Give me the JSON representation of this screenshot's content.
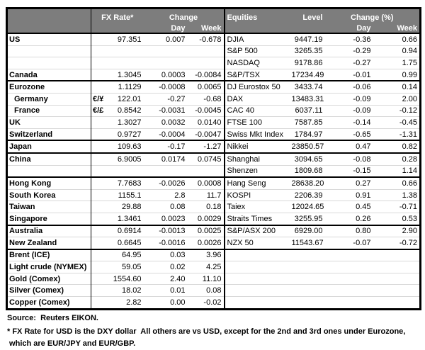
{
  "header": {
    "fx_rate": "FX Rate*",
    "change": "Change",
    "day": "Day",
    "week": "Week",
    "equities": "Equities",
    "level": "Level",
    "change_pct": "Change (%)"
  },
  "colors": {
    "header_bg": "#7d7d7d",
    "header_text": "#ffffff",
    "border": "#000000",
    "row_gridline": "#d9d9d9"
  },
  "sections": [
    {
      "rows": [
        {
          "label": "US",
          "fx": "97.351",
          "fx_day": "0.007",
          "fx_week": "-0.678",
          "equity": "DJIA",
          "level": "9447.19",
          "eq_day": "-0.36",
          "eq_week": "0.66"
        },
        {
          "label": "",
          "equity": "S&P 500",
          "level": "3265.35",
          "eq_day": "-0.29",
          "eq_week": "0.94"
        },
        {
          "label": "",
          "equity": "NASDAQ",
          "level": "9178.86",
          "eq_day": "-0.27",
          "eq_week": "1.75"
        },
        {
          "label": "Canada",
          "fx": "1.3045",
          "fx_day": "0.0003",
          "fx_week": "-0.0084",
          "equity": "S&P/TSX",
          "level": "17234.49",
          "eq_day": "-0.01",
          "eq_week": "0.99"
        }
      ]
    },
    {
      "rows": [
        {
          "label": "Eurozone",
          "fx": "1.1129",
          "fx_day": "-0.0008",
          "fx_week": "0.0065",
          "equity": "DJ Eurostox 50",
          "level": "3433.74",
          "eq_day": "-0.06",
          "eq_week": "0.14"
        },
        {
          "label": "Germany",
          "indent": true,
          "pair": "€/¥",
          "fx": "122.01",
          "fx_day": "-0.27",
          "fx_week": "-0.68",
          "equity": "DAX",
          "level": "13483.31",
          "eq_day": "-0.09",
          "eq_week": "2.00"
        },
        {
          "label": "France",
          "indent": true,
          "pair": "€/£",
          "fx": "0.8542",
          "fx_day": "-0.0031",
          "fx_week": "-0.0045",
          "equity": "CAC 40",
          "level": "6037.11",
          "eq_day": "-0.09",
          "eq_week": "-0.12"
        },
        {
          "label": "UK",
          "fx": "1.3027",
          "fx_day": "0.0032",
          "fx_week": "0.0140",
          "equity": "FTSE 100",
          "level": "7587.85",
          "eq_day": "-0.14",
          "eq_week": "-0.45"
        },
        {
          "label": "Switzerland",
          "fx": "0.9727",
          "fx_day": "-0.0004",
          "fx_week": "-0.0047",
          "equity": "Swiss Mkt Index",
          "level": "1784.97",
          "eq_day": "-0.65",
          "eq_week": "-1.31"
        }
      ]
    },
    {
      "rows": [
        {
          "label": "Japan",
          "fx": "109.63",
          "fx_day": "-0.17",
          "fx_week": "-1.27",
          "equity": "Nikkei",
          "level": "23850.57",
          "eq_day": "0.47",
          "eq_week": "0.82"
        }
      ]
    },
    {
      "rows": [
        {
          "label": "China",
          "fx": "6.9005",
          "fx_day": "0.0174",
          "fx_week": "0.0745",
          "equity": "Shanghai",
          "level": "3094.65",
          "eq_day": "-0.08",
          "eq_week": "0.28"
        },
        {
          "label": "",
          "equity": "Shenzen",
          "level": "1809.68",
          "eq_day": "-0.15",
          "eq_week": "1.14"
        }
      ]
    },
    {
      "rows": [
        {
          "label": "Hong Kong",
          "fx": "7.7683",
          "fx_day": "-0.0026",
          "fx_week": "0.0008",
          "equity": "Hang Seng",
          "level": "28638.20",
          "eq_day": "0.27",
          "eq_week": "0.66"
        },
        {
          "label": "South Korea",
          "fx": "1155.1",
          "fx_day": "2.8",
          "fx_week": "11.7",
          "equity": "KOSPI",
          "level": "2206.39",
          "eq_day": "0.91",
          "eq_week": "1.38"
        },
        {
          "label": "Taiwan",
          "fx": "29.88",
          "fx_day": "0.08",
          "fx_week": "0.18",
          "equity": "Taiex",
          "level": "12024.65",
          "eq_day": "0.45",
          "eq_week": "-0.71"
        },
        {
          "label": "Singapore",
          "fx": "1.3461",
          "fx_day": "0.0023",
          "fx_week": "0.0029",
          "equity": "Straits Times",
          "level": "3255.95",
          "eq_day": "0.26",
          "eq_week": "0.53"
        }
      ]
    },
    {
      "rows": [
        {
          "label": "Australia",
          "fx": "0.6914",
          "fx_day": "-0.0013",
          "fx_week": "0.0025",
          "equity": "S&P/ASX 200",
          "level": "6929.00",
          "eq_day": "0.80",
          "eq_week": "2.90"
        },
        {
          "label": "New Zealand",
          "fx": "0.6645",
          "fx_day": "-0.0016",
          "fx_week": "0.0026",
          "equity": "NZX 50",
          "level": "11543.67",
          "eq_day": "-0.07",
          "eq_week": "-0.72"
        }
      ]
    },
    {
      "rows": [
        {
          "label": "Brent (ICE)",
          "fx": "64.95",
          "fx_day": "0.03",
          "fx_week": "3.96"
        },
        {
          "label": "Light crude (NYMEX)",
          "fx": "59.05",
          "fx_day": "0.02",
          "fx_week": "4.25"
        },
        {
          "label": "Gold (Comex)",
          "fx": "1554.60",
          "fx_day": "2.40",
          "fx_week": "11.10"
        },
        {
          "label": "Silver (Comex)",
          "fx": "18.02",
          "fx_day": "0.01",
          "fx_week": "0.08"
        },
        {
          "label": "Copper (Comex)",
          "fx": "2.82",
          "fx_day": "0.00",
          "fx_week": "-0.02"
        }
      ]
    }
  ],
  "footer": {
    "source": "Source:  Reuters EIKON.",
    "note_line1": "* FX Rate for USD is the DXY dollar  All others are vs USD, except for the 2nd and 3rd ones under Eurozone,",
    "note_line2": " which are EUR/JPY and EUR/GBP."
  }
}
